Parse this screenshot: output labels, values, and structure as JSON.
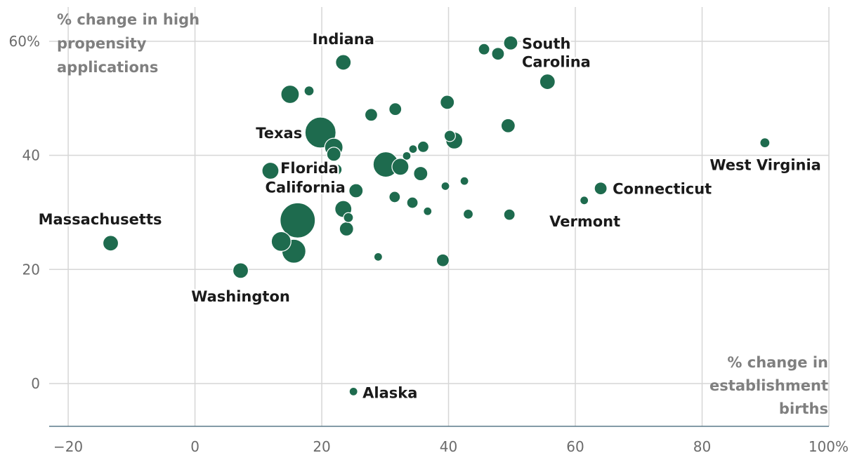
{
  "chart_data": {
    "type": "scatter",
    "xlabel": [
      "% change in",
      "establishment",
      "births"
    ],
    "ylabel": [
      "% change in high",
      "propensity",
      "applications"
    ],
    "xlim": [
      -23,
      100
    ],
    "ylim": [
      -7.5,
      66
    ],
    "x_ticks": [
      {
        "value": -20,
        "label": "−20"
      },
      {
        "value": 0,
        "label": "0"
      },
      {
        "value": 20,
        "label": "20"
      },
      {
        "value": 40,
        "label": "40"
      },
      {
        "value": 60,
        "label": "60"
      },
      {
        "value": 80,
        "label": "80"
      },
      {
        "value": 100,
        "label": "100%"
      }
    ],
    "y_ticks": [
      {
        "value": 0,
        "label": "0"
      },
      {
        "value": 20,
        "label": "20"
      },
      {
        "value": 40,
        "label": "40"
      },
      {
        "value": 60,
        "label": "60%"
      }
    ],
    "grid": true,
    "color": "#1e6b4e",
    "points": [
      {
        "x": -13.3,
        "y": 24.6,
        "size": 11,
        "label": "Massachusetts"
      },
      {
        "x": 7.2,
        "y": 19.8,
        "size": 11,
        "label": "Washington"
      },
      {
        "x": 25,
        "y": -1.4,
        "size": 6,
        "label": "Alaska"
      },
      {
        "x": 19.8,
        "y": 44,
        "size": 22,
        "label": "Texas"
      },
      {
        "x": 23.4,
        "y": 56.3,
        "size": 11,
        "label": "Indiana"
      },
      {
        "x": 22.3,
        "y": 37.5,
        "size": 8,
        "label": "Florida"
      },
      {
        "x": 16.2,
        "y": 28.6,
        "size": 25,
        "label": "California"
      },
      {
        "x": 49.8,
        "y": 59.7,
        "size": 10,
        "label": "South Carolina"
      },
      {
        "x": 89.9,
        "y": 42.2,
        "size": 7,
        "label": "West Virginia"
      },
      {
        "x": 64,
        "y": 34.2,
        "size": 9,
        "label": "Connecticut"
      },
      {
        "x": 61.4,
        "y": 32.1,
        "size": 6,
        "label": "Vermont"
      },
      {
        "x": 55.6,
        "y": 52.9,
        "size": 11
      },
      {
        "x": 47.8,
        "y": 57.8,
        "size": 9
      },
      {
        "x": 45.6,
        "y": 58.6,
        "size": 8
      },
      {
        "x": 15,
        "y": 50.7,
        "size": 13
      },
      {
        "x": 18,
        "y": 51.3,
        "size": 7
      },
      {
        "x": 27.8,
        "y": 47.1,
        "size": 9
      },
      {
        "x": 31.6,
        "y": 48.1,
        "size": 9
      },
      {
        "x": 39.8,
        "y": 49.3,
        "size": 10
      },
      {
        "x": 49.4,
        "y": 45.2,
        "size": 10
      },
      {
        "x": 40.9,
        "y": 42.6,
        "size": 12
      },
      {
        "x": 40.2,
        "y": 43.4,
        "size": 8
      },
      {
        "x": 21.9,
        "y": 41.4,
        "size": 13
      },
      {
        "x": 21.9,
        "y": 40.2,
        "size": 10
      },
      {
        "x": 36,
        "y": 41.5,
        "size": 8
      },
      {
        "x": 34.4,
        "y": 41.1,
        "size": 6
      },
      {
        "x": 33.4,
        "y": 39.9,
        "size": 6
      },
      {
        "x": 30.1,
        "y": 38.4,
        "size": 18
      },
      {
        "x": 32.4,
        "y": 38,
        "size": 12
      },
      {
        "x": 35.6,
        "y": 36.8,
        "size": 10
      },
      {
        "x": 11.9,
        "y": 37.3,
        "size": 12
      },
      {
        "x": 22.8,
        "y": 34.2,
        "size": 6
      },
      {
        "x": 25.4,
        "y": 33.8,
        "size": 10
      },
      {
        "x": 31.5,
        "y": 32.7,
        "size": 8
      },
      {
        "x": 34.3,
        "y": 31.7,
        "size": 8
      },
      {
        "x": 39.5,
        "y": 34.6,
        "size": 6
      },
      {
        "x": 42.5,
        "y": 35.5,
        "size": 6
      },
      {
        "x": 23.4,
        "y": 30.6,
        "size": 12
      },
      {
        "x": 24.2,
        "y": 29.1,
        "size": 7
      },
      {
        "x": 36.7,
        "y": 30.2,
        "size": 6
      },
      {
        "x": 43.1,
        "y": 29.7,
        "size": 7
      },
      {
        "x": 49.6,
        "y": 29.6,
        "size": 8
      },
      {
        "x": 23.9,
        "y": 27.1,
        "size": 10
      },
      {
        "x": 13.6,
        "y": 24.9,
        "size": 14
      },
      {
        "x": 15.6,
        "y": 23.2,
        "size": 17
      },
      {
        "x": 28.9,
        "y": 22.2,
        "size": 6
      },
      {
        "x": 39.1,
        "y": 21.6,
        "size": 9
      }
    ]
  }
}
